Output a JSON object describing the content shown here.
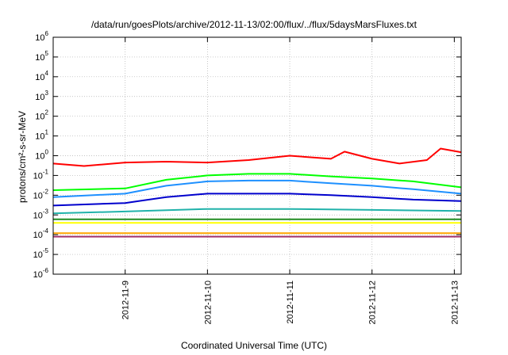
{
  "chart_data": {
    "type": "line",
    "title": "/data/run/goesPlots/archive/2012-11-13/02:00/flux/../flux/5daysMarsFluxes.txt",
    "xlabel": "Coordinated Universal Time (UTC)",
    "ylabel": "protons/cm²-s-sr-MeV",
    "y_scale": "log",
    "ylim": [
      1e-06,
      1000000.0
    ],
    "xlim": [
      "2012-11-08T03:00",
      "2012-11-13T02:00"
    ],
    "grid": true,
    "legend": "none",
    "y_ticks": [
      {
        "base": "10",
        "exp": "-6",
        "value": 1e-06
      },
      {
        "base": "10",
        "exp": "-5",
        "value": 1e-05
      },
      {
        "base": "10",
        "exp": "-4",
        "value": 0.0001
      },
      {
        "base": "10",
        "exp": "-3",
        "value": 0.001
      },
      {
        "base": "10",
        "exp": "-2",
        "value": 0.01
      },
      {
        "base": "10",
        "exp": "-1",
        "value": 0.1
      },
      {
        "base": "10",
        "exp": "0",
        "value": 1
      },
      {
        "base": "10",
        "exp": "1",
        "value": 10
      },
      {
        "base": "10",
        "exp": "2",
        "value": 100
      },
      {
        "base": "10",
        "exp": "3",
        "value": 1000
      },
      {
        "base": "10",
        "exp": "4",
        "value": 10000
      },
      {
        "base": "10",
        "exp": "5",
        "value": 100000
      },
      {
        "base": "10",
        "exp": "6",
        "value": 1000000
      }
    ],
    "x_ticks": [
      {
        "label": "2012-11-9",
        "value": "2012-11-09T00:00"
      },
      {
        "label": "2012-11-10",
        "value": "2012-11-10T00:00"
      },
      {
        "label": "2012-11-11",
        "value": "2012-11-11T00:00"
      },
      {
        "label": "2012-11-12",
        "value": "2012-11-12T00:00"
      },
      {
        "label": "2012-11-13",
        "value": "2012-11-13T00:00"
      }
    ],
    "series": [
      {
        "color": "#ff0000",
        "x": [
          "2012-11-08T03:00",
          "2012-11-08T12:00",
          "2012-11-09T00:00",
          "2012-11-09T12:00",
          "2012-11-10T00:00",
          "2012-11-10T12:00",
          "2012-11-11T00:00",
          "2012-11-11T12:00",
          "2012-11-11T16:00",
          "2012-11-12T00:00",
          "2012-11-12T08:00",
          "2012-11-12T16:00",
          "2012-11-12T20:00",
          "2012-11-13T02:00"
        ],
        "y": [
          0.4,
          0.3,
          0.45,
          0.5,
          0.45,
          0.6,
          1.0,
          0.7,
          1.6,
          0.7,
          0.4,
          0.6,
          2.3,
          1.5
        ]
      },
      {
        "color": "#00ff00",
        "x": [
          "2012-11-08T03:00",
          "2012-11-09T00:00",
          "2012-11-09T12:00",
          "2012-11-10T00:00",
          "2012-11-10T12:00",
          "2012-11-11T00:00",
          "2012-11-11T12:00",
          "2012-11-12T00:00",
          "2012-11-12T12:00",
          "2012-11-13T02:00"
        ],
        "y": [
          0.018,
          0.022,
          0.06,
          0.1,
          0.12,
          0.12,
          0.09,
          0.07,
          0.05,
          0.025
        ]
      },
      {
        "color": "#1e90ff",
        "x": [
          "2012-11-08T03:00",
          "2012-11-09T00:00",
          "2012-11-09T12:00",
          "2012-11-10T00:00",
          "2012-11-10T12:00",
          "2012-11-11T00:00",
          "2012-11-11T12:00",
          "2012-11-12T00:00",
          "2012-11-12T12:00",
          "2012-11-13T02:00"
        ],
        "y": [
          0.008,
          0.012,
          0.03,
          0.05,
          0.055,
          0.055,
          0.04,
          0.03,
          0.02,
          0.012
        ]
      },
      {
        "color": "#0000cd",
        "x": [
          "2012-11-08T03:00",
          "2012-11-09T00:00",
          "2012-11-09T12:00",
          "2012-11-10T00:00",
          "2012-11-10T12:00",
          "2012-11-11T00:00",
          "2012-11-11T12:00",
          "2012-11-12T00:00",
          "2012-11-12T12:00",
          "2012-11-13T02:00"
        ],
        "y": [
          0.003,
          0.004,
          0.008,
          0.012,
          0.012,
          0.012,
          0.01,
          0.008,
          0.006,
          0.005
        ]
      },
      {
        "color": "#20b2aa",
        "x": [
          "2012-11-08T03:00",
          "2012-11-09T00:00",
          "2012-11-10T00:00",
          "2012-11-11T00:00",
          "2012-11-12T00:00",
          "2012-11-13T02:00"
        ],
        "y": [
          0.0012,
          0.0015,
          0.002,
          0.002,
          0.0018,
          0.0016
        ]
      },
      {
        "color": "#228b22",
        "x": [
          "2012-11-08T03:00",
          "2012-11-09T00:00",
          "2012-11-10T00:00",
          "2012-11-11T00:00",
          "2012-11-12T00:00",
          "2012-11-13T02:00"
        ],
        "y": [
          0.0006,
          0.0006,
          0.0006,
          0.0006,
          0.0006,
          0.0006
        ]
      },
      {
        "color": "#ffff00",
        "x": [
          "2012-11-08T03:00",
          "2012-11-09T00:00",
          "2012-11-10T00:00",
          "2012-11-11T00:00",
          "2012-11-12T00:00",
          "2012-11-13T02:00"
        ],
        "y": [
          0.0004,
          0.0004,
          0.0004,
          0.0004,
          0.0004,
          0.0004
        ]
      },
      {
        "color": "#ffa500",
        "x": [
          "2012-11-08T03:00",
          "2012-11-09T00:00",
          "2012-11-10T00:00",
          "2012-11-11T00:00",
          "2012-11-12T00:00",
          "2012-11-13T02:00"
        ],
        "y": [
          0.00012,
          0.00012,
          0.00012,
          0.00012,
          0.00012,
          0.00012
        ]
      },
      {
        "color": "#a0306a",
        "x": [
          "2012-11-08T03:00",
          "2012-11-09T00:00",
          "2012-11-10T00:00",
          "2012-11-11T00:00",
          "2012-11-12T00:00",
          "2012-11-13T02:00"
        ],
        "y": [
          8e-05,
          8e-05,
          8e-05,
          8e-05,
          8e-05,
          8e-05
        ]
      }
    ]
  }
}
